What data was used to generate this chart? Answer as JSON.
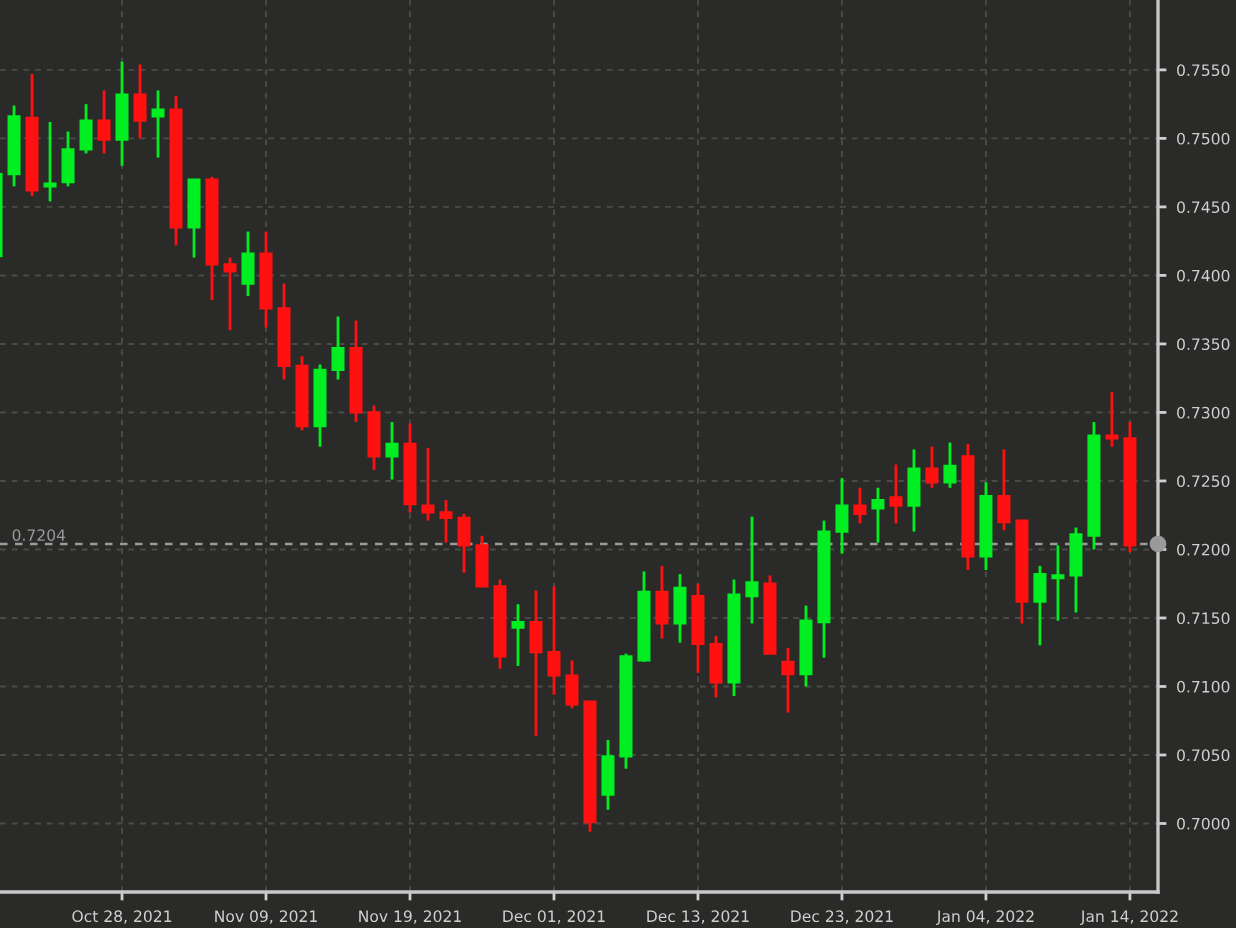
{
  "chart_data": {
    "type": "candlestick",
    "categories": [
      null,
      null,
      null,
      null,
      null,
      null,
      null,
      "Oct 28, 2021",
      null,
      null,
      null,
      null,
      null,
      null,
      null,
      "Nov 09, 2021",
      null,
      null,
      null,
      null,
      null,
      null,
      null,
      "Nov 19, 2021",
      null,
      null,
      null,
      null,
      null,
      null,
      null,
      "Dec 01, 2021",
      null,
      null,
      null,
      null,
      null,
      null,
      null,
      "Dec 13, 2021",
      null,
      null,
      null,
      null,
      null,
      null,
      null,
      "Dec 23, 2021",
      null,
      null,
      null,
      null,
      null,
      null,
      null,
      "Jan 04, 2022",
      null,
      null,
      null,
      null,
      null,
      null,
      null,
      "Jan 14, 2022"
    ],
    "ohlc": [
      [
        0.7414,
        0.7474,
        0.7414,
        0.7474
      ],
      [
        0.7474,
        0.7524,
        0.7465,
        0.7516
      ],
      [
        0.7515,
        0.7547,
        0.7458,
        0.7462
      ],
      [
        0.7465,
        0.7512,
        0.7454,
        0.7467
      ],
      [
        0.7468,
        0.7505,
        0.7465,
        0.7492
      ],
      [
        0.7492,
        0.7525,
        0.7489,
        0.7513
      ],
      [
        0.7513,
        0.7535,
        0.7489,
        0.7499
      ],
      [
        0.7499,
        0.7556,
        0.748,
        0.7532
      ],
      [
        0.7532,
        0.7554,
        0.75,
        0.7513
      ],
      [
        0.7516,
        0.7535,
        0.7486,
        0.7521
      ],
      [
        0.7521,
        0.7531,
        0.7422,
        0.7435
      ],
      [
        0.7435,
        0.747,
        0.7413,
        0.747
      ],
      [
        0.747,
        0.7472,
        0.7382,
        0.7408
      ],
      [
        0.7408,
        0.7413,
        0.736,
        0.7403
      ],
      [
        0.7394,
        0.7432,
        0.7385,
        0.7416
      ],
      [
        0.7416,
        0.7432,
        0.7362,
        0.7376
      ],
      [
        0.7376,
        0.7394,
        0.7324,
        0.7334
      ],
      [
        0.7334,
        0.7341,
        0.7287,
        0.729
      ],
      [
        0.729,
        0.7335,
        0.7275,
        0.7331
      ],
      [
        0.7331,
        0.737,
        0.7324,
        0.7347
      ],
      [
        0.7347,
        0.7367,
        0.7293,
        0.73
      ],
      [
        0.73,
        0.7305,
        0.7258,
        0.7268
      ],
      [
        0.7268,
        0.7293,
        0.7251,
        0.7277
      ],
      [
        0.7277,
        0.7292,
        0.7227,
        0.7233
      ],
      [
        0.7232,
        0.7274,
        0.7221,
        0.7227
      ],
      [
        0.7227,
        0.7236,
        0.7205,
        0.7223
      ],
      [
        0.7223,
        0.7226,
        0.7183,
        0.7203
      ],
      [
        0.7203,
        0.721,
        0.7173,
        0.7173
      ],
      [
        0.7173,
        0.7178,
        0.7113,
        0.7122
      ],
      [
        0.7143,
        0.716,
        0.7115,
        0.7147
      ],
      [
        0.7147,
        0.717,
        0.7064,
        0.7125
      ],
      [
        0.7125,
        0.7173,
        0.7094,
        0.7108
      ],
      [
        0.7108,
        0.7119,
        0.7084,
        0.7087
      ],
      [
        0.7089,
        0.7089,
        0.6994,
        0.7001
      ],
      [
        0.7021,
        0.7061,
        0.701,
        0.7049
      ],
      [
        0.7049,
        0.7124,
        0.704,
        0.7122
      ],
      [
        0.7119,
        0.7184,
        0.7118,
        0.7169
      ],
      [
        0.7169,
        0.7188,
        0.7135,
        0.7146
      ],
      [
        0.7146,
        0.7182,
        0.7132,
        0.7172
      ],
      [
        0.7166,
        0.7175,
        0.711,
        0.7131
      ],
      [
        0.7131,
        0.7137,
        0.7092,
        0.7103
      ],
      [
        0.7103,
        0.7178,
        0.7093,
        0.7167
      ],
      [
        0.7166,
        0.7224,
        0.7146,
        0.7176
      ],
      [
        0.7175,
        0.7181,
        0.7124,
        0.7124
      ],
      [
        0.7118,
        0.7128,
        0.7081,
        0.7109
      ],
      [
        0.7109,
        0.7159,
        0.71,
        0.7148
      ],
      [
        0.7147,
        0.7221,
        0.7121,
        0.7213
      ],
      [
        0.7213,
        0.7252,
        0.7197,
        0.7232
      ],
      [
        0.7232,
        0.7245,
        0.7219,
        0.7226
      ],
      [
        0.723,
        0.7245,
        0.7205,
        0.7236
      ],
      [
        0.7238,
        0.7262,
        0.7219,
        0.7232
      ],
      [
        0.7232,
        0.7273,
        0.7213,
        0.7259
      ],
      [
        0.7259,
        0.7275,
        0.7245,
        0.7249
      ],
      [
        0.7249,
        0.7278,
        0.7245,
        0.7261
      ],
      [
        0.7268,
        0.7277,
        0.7185,
        0.7195
      ],
      [
        0.7195,
        0.7249,
        0.7185,
        0.7239
      ],
      [
        0.7239,
        0.7273,
        0.7214,
        0.722
      ],
      [
        0.7221,
        0.7221,
        0.7146,
        0.7162
      ],
      [
        0.7162,
        0.7188,
        0.713,
        0.7182
      ],
      [
        0.7179,
        0.7203,
        0.7148,
        0.7181
      ],
      [
        0.7181,
        0.7216,
        0.7154,
        0.7211
      ],
      [
        0.721,
        0.7293,
        0.72,
        0.7283
      ],
      [
        0.7283,
        0.7315,
        0.7275,
        0.7281
      ],
      [
        0.7281,
        0.7293,
        0.7198,
        0.7203
      ]
    ],
    "colors": [
      "#00ee22",
      "#00ee22",
      "#ff1111",
      "#00ee22",
      "#00ee22",
      "#00ee22",
      "#ff1111",
      "#00ee22",
      "#ff1111",
      "#00ee22",
      "#ff1111",
      "#00ee22",
      "#ff1111",
      "#ff1111",
      "#00ee22",
      "#ff1111",
      "#ff1111",
      "#ff1111",
      "#00ee22",
      "#00ee22",
      "#ff1111",
      "#ff1111",
      "#00ee22",
      "#ff1111",
      "#ff1111",
      "#ff1111",
      "#ff1111",
      "#ff1111",
      "#ff1111",
      "#00ee22",
      "#ff1111",
      "#ff1111",
      "#ff1111",
      "#ff1111",
      "#00ee22",
      "#00ee22",
      "#00ee22",
      "#ff1111",
      "#00ee22",
      "#ff1111",
      "#ff1111",
      "#00ee22",
      "#00ee22",
      "#ff1111",
      "#ff1111",
      "#00ee22",
      "#00ee22",
      "#00ee22",
      "#ff1111",
      "#00ee22",
      "#ff1111",
      "#00ee22",
      "#ff1111",
      "#00ee22",
      "#ff1111",
      "#00ee22",
      "#ff1111",
      "#ff1111",
      "#00ee22",
      "#00ee22",
      "#00ee22",
      "#00ee22",
      "#ff1111",
      "#ff1111"
    ],
    "ylim": [
      0.695,
      0.7601
    ],
    "yticks": [
      {
        "value": 0.7,
        "label": "0.7000"
      },
      {
        "value": 0.705,
        "label": "0.7050"
      },
      {
        "value": 0.71,
        "label": "0.7100"
      },
      {
        "value": 0.715,
        "label": "0.7150"
      },
      {
        "value": 0.72,
        "label": "0.7200"
      },
      {
        "value": 0.725,
        "label": "0.7250"
      },
      {
        "value": 0.73,
        "label": "0.7300"
      },
      {
        "value": 0.735,
        "label": "0.7350"
      },
      {
        "value": 0.74,
        "label": "0.7400"
      },
      {
        "value": 0.745,
        "label": "0.7450"
      },
      {
        "value": 0.75,
        "label": "0.7500"
      },
      {
        "value": 0.755,
        "label": "0.7550"
      }
    ],
    "ref_lines": [
      {
        "axis": "y",
        "value": 0.7204,
        "label": "0.7204",
        "color": "#9a9a9a",
        "line_style": "dashed"
      }
    ],
    "grid": true
  }
}
